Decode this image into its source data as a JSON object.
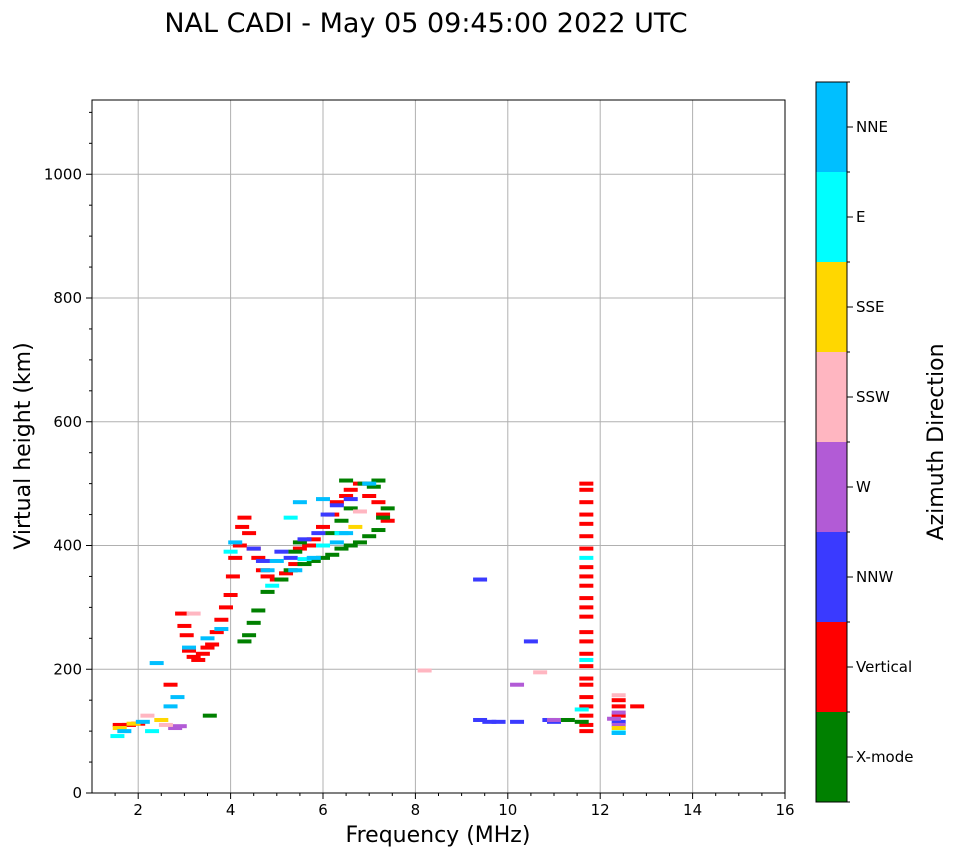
{
  "chart_data": {
    "type": "scatter",
    "title": "NAL CADI - May 05 09:45:00 2022 UTC",
    "xlabel": "Frequency (MHz)",
    "ylabel": "Virtual height (km)",
    "xlim": [
      1,
      16
    ],
    "ylim": [
      0,
      1120
    ],
    "xticks": [
      "2",
      "4",
      "6",
      "8",
      "10",
      "12",
      "14",
      "16"
    ],
    "yticks": [
      "0",
      "200",
      "400",
      "600",
      "800",
      "1000"
    ],
    "grid": true,
    "colorbar": {
      "label": "Azimuth Direction",
      "categories": [
        {
          "name": "X-mode",
          "color": "#008000"
        },
        {
          "name": "Vertical",
          "color": "#ff0000"
        },
        {
          "name": "NNW",
          "color": "#3a3aff"
        },
        {
          "name": "W",
          "color": "#b25bd6"
        },
        {
          "name": "SSW",
          "color": "#ffb6c1"
        },
        {
          "name": "SSE",
          "color": "#ffd700"
        },
        {
          "name": "E",
          "color": "#00ffff"
        },
        {
          "name": "NNE",
          "color": "#00bfff"
        }
      ]
    },
    "series": [
      {
        "name": "Vertical",
        "points": [
          [
            2.95,
            290
          ],
          [
            3.0,
            270
          ],
          [
            3.05,
            255
          ],
          [
            3.1,
            230
          ],
          [
            3.2,
            220
          ],
          [
            3.3,
            215
          ],
          [
            3.4,
            225
          ],
          [
            3.5,
            235
          ],
          [
            3.6,
            240
          ],
          [
            3.7,
            260
          ],
          [
            3.8,
            280
          ],
          [
            3.9,
            300
          ],
          [
            4.0,
            320
          ],
          [
            4.05,
            350
          ],
          [
            4.1,
            380
          ],
          [
            4.2,
            400
          ],
          [
            4.25,
            430
          ],
          [
            4.3,
            445
          ],
          [
            4.4,
            420
          ],
          [
            4.5,
            395
          ],
          [
            4.6,
            380
          ],
          [
            4.7,
            360
          ],
          [
            4.8,
            350
          ],
          [
            5.0,
            345
          ],
          [
            5.2,
            355
          ],
          [
            5.4,
            370
          ],
          [
            5.5,
            395
          ],
          [
            5.7,
            400
          ],
          [
            5.8,
            410
          ],
          [
            6.0,
            430
          ],
          [
            6.2,
            450
          ],
          [
            6.3,
            470
          ],
          [
            6.5,
            480
          ],
          [
            6.6,
            490
          ],
          [
            6.8,
            500
          ],
          [
            7.0,
            480
          ],
          [
            7.2,
            470
          ],
          [
            7.3,
            450
          ],
          [
            7.4,
            440
          ],
          [
            2.7,
            175
          ],
          [
            1.6,
            110
          ],
          [
            1.8,
            110
          ],
          [
            2.0,
            112
          ],
          [
            11.7,
            100
          ],
          [
            11.7,
            110
          ],
          [
            11.7,
            125
          ],
          [
            11.7,
            140
          ],
          [
            11.7,
            155
          ],
          [
            11.7,
            175
          ],
          [
            11.7,
            185
          ],
          [
            11.7,
            205
          ],
          [
            11.7,
            225
          ],
          [
            11.7,
            245
          ],
          [
            11.7,
            260
          ],
          [
            11.7,
            285
          ],
          [
            11.7,
            300
          ],
          [
            11.7,
            315
          ],
          [
            11.7,
            335
          ],
          [
            11.7,
            350
          ],
          [
            11.7,
            365
          ],
          [
            11.7,
            395
          ],
          [
            11.7,
            415
          ],
          [
            11.7,
            435
          ],
          [
            11.7,
            450
          ],
          [
            11.7,
            470
          ],
          [
            11.7,
            490
          ],
          [
            11.7,
            500
          ],
          [
            12.4,
            150
          ],
          [
            12.4,
            140
          ],
          [
            12.4,
            125
          ],
          [
            12.8,
            140
          ]
        ]
      },
      {
        "name": "X-mode",
        "points": [
          [
            4.3,
            245
          ],
          [
            4.4,
            255
          ],
          [
            4.5,
            275
          ],
          [
            4.6,
            295
          ],
          [
            4.8,
            325
          ],
          [
            5.1,
            345
          ],
          [
            5.3,
            360
          ],
          [
            5.6,
            370
          ],
          [
            5.8,
            375
          ],
          [
            6.0,
            380
          ],
          [
            6.2,
            385
          ],
          [
            6.4,
            395
          ],
          [
            6.6,
            400
          ],
          [
            6.8,
            405
          ],
          [
            7.0,
            415
          ],
          [
            7.2,
            425
          ],
          [
            7.3,
            445
          ],
          [
            7.4,
            460
          ],
          [
            6.5,
            505
          ],
          [
            6.9,
            500
          ],
          [
            7.1,
            495
          ],
          [
            7.2,
            505
          ],
          [
            6.2,
            420
          ],
          [
            6.4,
            440
          ],
          [
            6.6,
            460
          ],
          [
            5.4,
            390
          ],
          [
            5.5,
            405
          ],
          [
            3.55,
            125
          ],
          [
            11.0,
            118
          ],
          [
            11.3,
            118
          ],
          [
            11.6,
            115
          ]
        ]
      },
      {
        "name": "NNW",
        "points": [
          [
            9.4,
            345
          ],
          [
            9.4,
            118
          ],
          [
            9.6,
            115
          ],
          [
            9.8,
            115
          ],
          [
            10.2,
            115
          ],
          [
            10.5,
            245
          ],
          [
            10.9,
            118
          ],
          [
            11.0,
            115
          ],
          [
            4.5,
            395
          ],
          [
            4.7,
            375
          ],
          [
            5.1,
            390
          ],
          [
            5.3,
            380
          ],
          [
            5.6,
            410
          ],
          [
            5.9,
            420
          ],
          [
            6.1,
            450
          ],
          [
            6.3,
            465
          ],
          [
            6.6,
            475
          ],
          [
            12.4,
            115
          ]
        ]
      },
      {
        "name": "W",
        "points": [
          [
            10.2,
            175
          ],
          [
            11.0,
            118
          ],
          [
            2.8,
            105
          ],
          [
            2.9,
            108
          ],
          [
            12.4,
            110
          ],
          [
            12.4,
            130
          ],
          [
            12.3,
            120
          ]
        ]
      },
      {
        "name": "SSW",
        "points": [
          [
            8.2,
            198
          ],
          [
            10.7,
            195
          ],
          [
            3.2,
            290
          ],
          [
            6.8,
            455
          ],
          [
            2.2,
            125
          ],
          [
            2.6,
            110
          ],
          [
            12.4,
            158
          ]
        ]
      },
      {
        "name": "SSE",
        "points": [
          [
            1.6,
            105
          ],
          [
            1.9,
            112
          ],
          [
            2.5,
            118
          ],
          [
            6.7,
            430
          ],
          [
            12.4,
            105
          ]
        ]
      },
      {
        "name": "E",
        "points": [
          [
            5.3,
            445
          ],
          [
            5.6,
            378
          ],
          [
            6.0,
            400
          ],
          [
            6.4,
            420
          ],
          [
            4.0,
            390
          ],
          [
            4.9,
            335
          ],
          [
            11.6,
            135
          ],
          [
            11.7,
            215
          ],
          [
            11.7,
            380
          ],
          [
            12.4,
            98
          ],
          [
            1.55,
            92
          ],
          [
            2.3,
            100
          ]
        ]
      },
      {
        "name": "NNE",
        "points": [
          [
            2.4,
            210
          ],
          [
            2.85,
            155
          ],
          [
            2.7,
            140
          ],
          [
            3.8,
            265
          ],
          [
            4.1,
            405
          ],
          [
            4.8,
            360
          ],
          [
            5.0,
            375
          ],
          [
            5.4,
            360
          ],
          [
            5.8,
            380
          ],
          [
            6.3,
            405
          ],
          [
            6.5,
            420
          ],
          [
            6.0,
            475
          ],
          [
            5.5,
            470
          ],
          [
            7.0,
            500
          ],
          [
            3.1,
            235
          ],
          [
            3.5,
            250
          ],
          [
            12.4,
            97
          ],
          [
            1.7,
            100
          ],
          [
            2.1,
            115
          ]
        ]
      }
    ]
  }
}
